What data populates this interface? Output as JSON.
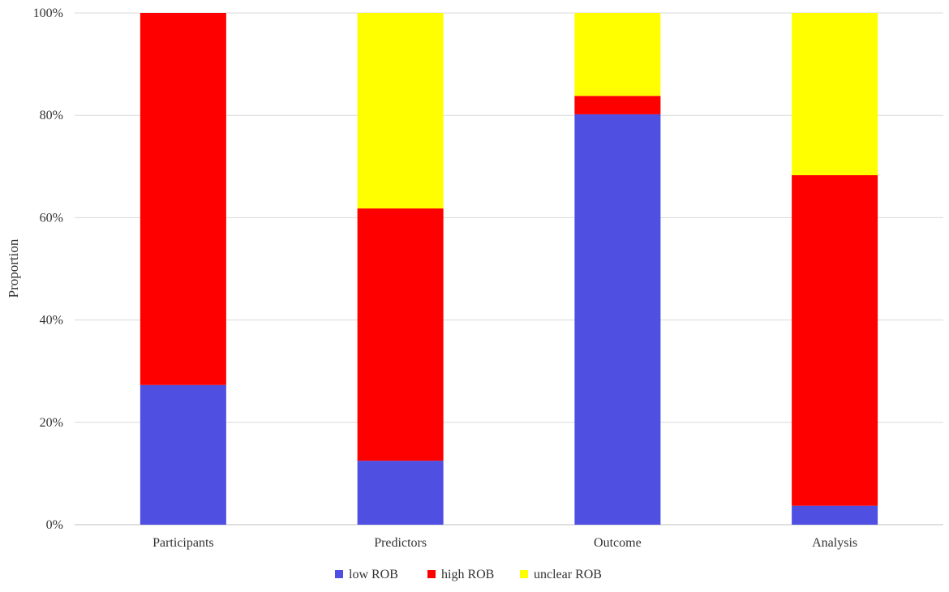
{
  "chart_data": {
    "type": "bar",
    "stacked": true,
    "categories": [
      "Participants",
      "Predictors",
      "Outcome",
      "Analysis"
    ],
    "series": [
      {
        "name": "low ROB",
        "color": "#4f4fe1",
        "values": [
          27.3,
          12.5,
          80.2,
          3.7
        ]
      },
      {
        "name": "high ROB",
        "color": "#ff0000",
        "values": [
          72.7,
          49.3,
          3.6,
          64.6
        ]
      },
      {
        "name": "unclear ROB",
        "color": "#ffff00",
        "values": [
          0,
          38.2,
          16.2,
          31.7
        ]
      }
    ],
    "xlabel": "",
    "ylabel": "Proportion",
    "ylim": [
      0,
      100
    ],
    "yticks": [
      "0%",
      "20%",
      "40%",
      "60%",
      "80%",
      "100%"
    ],
    "ytick_values": [
      0,
      20,
      40,
      60,
      80,
      100
    ],
    "grid": true,
    "legend_position": "bottom"
  }
}
